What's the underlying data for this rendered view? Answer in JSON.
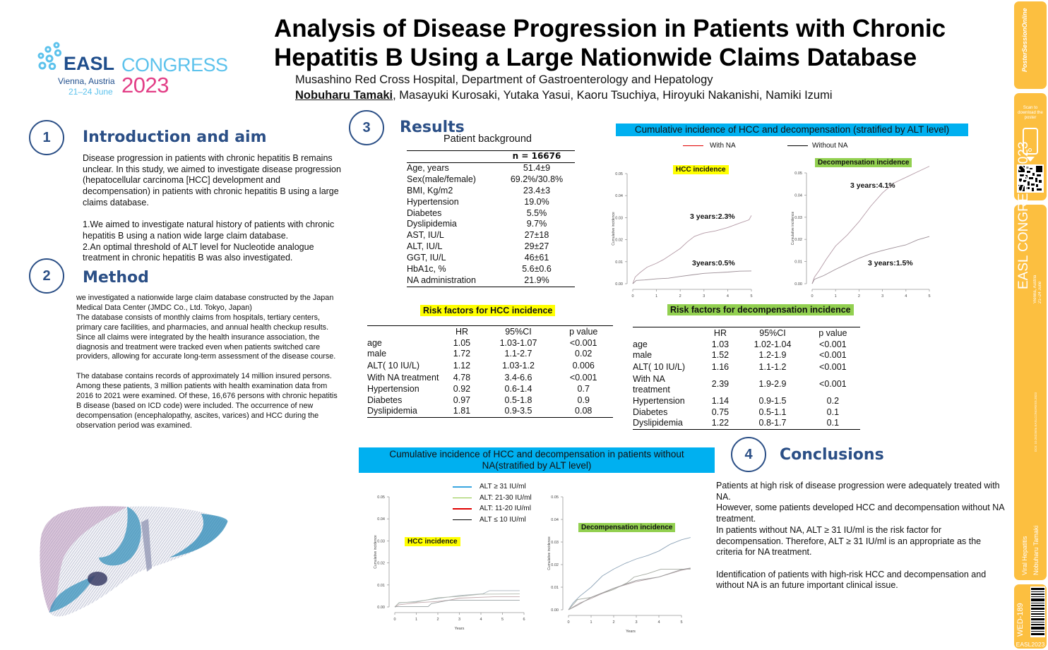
{
  "logo": {
    "brand": "EASL",
    "event": "CONGRESS",
    "city": "Vienna, Austria",
    "dates": "21–24 June",
    "year": "2023",
    "colors": {
      "brand": "#1f4e8c",
      "event": "#5cc2ec",
      "year": "#e23e86"
    }
  },
  "header": {
    "title_line1": "Analysis of Disease Progression in Patients with Chronic",
    "title_line2": "Hepatitis B Using a Large Nationwide Claims Database",
    "affiliation": "Musashino Red Cross Hospital, Department of Gastroenterology and Hepatology",
    "lead_author": "Nobuharu Tamaki",
    "co_authors": ", Masayuki Kurosaki, Yutaka Yasui, Kaoru Tsuchiya, Hiroyuki Nakanishi, Namiki Izumi"
  },
  "sections": {
    "intro": {
      "number": "1",
      "title": "Introduction and aim",
      "p1": "Disease progression in patients with chronic hepatitis B remains unclear. In this study, we aimed to investigate disease progression (hepatocellular carcinoma [HCC] development and decompensation) in patients with chronic hepatitis B using a large claims database.",
      "p2": "1.We aimed to investigate natural history of patients with chronic hepatitis B using a nation wide large claim database.",
      "p3": "2.An optimal threshold of ALT level for Nucleotide analogue treatment in chronic hepatitis B was also investigated."
    },
    "method": {
      "number": "2",
      "title": "Method",
      "p1": "we investigated a nationwide large claim database constructed by the Japan Medical Data Center (JMDC Co., Ltd. Tokyo, Japan)",
      "p2": "The database consists of monthly claims from hospitals, tertiary centers, primary care facilities, and pharmacies, and annual health checkup results.",
      "p3": "Since all claims were integrated by the health insurance association, the diagnosis and treatment were tracked even when patients switched care providers, allowing for accurate long-term assessment of the disease course.",
      "p4": "The database contains records of approximately 14 million insured persons. Among these patients, 3 million patients with health examination data from 2016 to 2021 were examined. Of these, 16,676 persons with chronic hepatitis B disease (based on ICD code) were included. The occurrence of new decompensation (encephalopathy, ascites, varices) and HCC during the observation period was examined."
    },
    "results": {
      "number": "3",
      "title": "Results"
    },
    "conclusions": {
      "number": "4",
      "title": "Conclusions",
      "p1": "Patients at high risk of disease progression were adequately treated with NA.",
      "p2": "However, some patients developed HCC and decompensation without NA treatment.",
      "p3": "In patients without NA, ALT ≥ 31 IU/ml is the risk factor for decompensation. Therefore, ALT ≥ 31 IU/ml is an appropriate as the criteria for NA treatment.",
      "p4": "Identification of patients with high-risk HCC and decompensation and without NA is an future important clinical issue."
    }
  },
  "patient_background": {
    "title": "Patient background",
    "header": "n = 16676",
    "rows": [
      {
        "label": "Age, years",
        "value": "51.4±9"
      },
      {
        "label": "Sex(male/female)",
        "value": "69.2%/30.8%"
      },
      {
        "label": "BMI, Kg/m2",
        "value": "23.4±3"
      },
      {
        "label": "Hypertension",
        "value": "19.0%"
      },
      {
        "label": "Diabetes",
        "value": "5.5%"
      },
      {
        "label": "Dyslipidemia",
        "value": "9.7%"
      },
      {
        "label": "AST, IU/L",
        "value": "27±18"
      },
      {
        "label": "ALT, IU/L",
        "value": "29±27"
      },
      {
        "label": "GGT, IU/L",
        "value": "46±61"
      },
      {
        "label": "HbA1c, %",
        "value": "5.6±0.6"
      },
      {
        "label": "NA administration",
        "value": "21.9%"
      }
    ]
  },
  "risk_hcc": {
    "title": "Risk factors for HCC incidence",
    "columns": [
      "",
      "HR",
      "95%CI",
      "p value"
    ],
    "rows": [
      {
        "factor": "age",
        "hr": "1.05",
        "ci": "1.03-1.07",
        "p": "<0.001"
      },
      {
        "factor": "male",
        "hr": "1.72",
        "ci": "1.1-2.7",
        "p": "0.02"
      },
      {
        "factor": "ALT( 10 IU/L)",
        "hr": "1.12",
        "ci": "1.03-1.2",
        "p": "0.006"
      },
      {
        "factor": "With NA treatment",
        "hr": "4.78",
        "ci": "3.4-6.6",
        "p": "<0.001"
      },
      {
        "factor": "Hypertension",
        "hr": "0.92",
        "ci": "0.6-1.4",
        "p": "0.7"
      },
      {
        "factor": "Diabetes",
        "hr": "0.97",
        "ci": "0.5-1.8",
        "p": "0.9"
      },
      {
        "factor": "Dyslipidemia",
        "hr": "1.81",
        "ci": "0.9-3.5",
        "p": "0.08"
      }
    ]
  },
  "risk_decomp": {
    "title": "Risk factors for decompensation incidence",
    "columns": [
      "",
      "HR",
      "95%CI",
      "p value"
    ],
    "rows": [
      {
        "factor": "age",
        "hr": "1.03",
        "ci": "1.02-1.04",
        "p": "<0.001"
      },
      {
        "factor": "male",
        "hr": "1.52",
        "ci": "1.2-1.9",
        "p": "<0.001"
      },
      {
        "factor": "ALT( 10 IU/L)",
        "hr": "1.16",
        "ci": "1.1-1.2",
        "p": "<0.001"
      },
      {
        "factor": "With NA treatment",
        "hr": "2.39",
        "ci": "1.9-2.9",
        "p": "<0.001"
      },
      {
        "factor": "Hypertension",
        "hr": "1.14",
        "ci": "0.9-1.5",
        "p": "0.2"
      },
      {
        "factor": "Diabetes",
        "hr": "0.75",
        "ci": "0.5-1.1",
        "p": "0.1"
      },
      {
        "factor": "Dyslipidemia",
        "hr": "1.22",
        "ci": "0.8-1.7",
        "p": "0.1"
      }
    ]
  },
  "figure1": {
    "banner": "Cumulative incidence of HCC and decompensation (stratified by ALT level)",
    "legend": [
      {
        "label": "With NA",
        "color": "#e00000"
      },
      {
        "label": "Without NA",
        "color": "#000000"
      }
    ]
  },
  "figure2": {
    "banner_line1": "Cumulative incidence of HCC and decompensation in patients without",
    "banner_line2": "NA(stratified by ALT level)",
    "legend": [
      {
        "label": "ALT ≥ 31 IU/ml",
        "color": "#3aa6e0"
      },
      {
        "label": "ALT: 21-30 IU/ml",
        "color": "#8dc63f"
      },
      {
        "label": "ALT: 11-20 IU/ml",
        "color": "#e00000"
      },
      {
        "label": "ALT ≤ 10 IU/ml",
        "color": "#000000"
      }
    ]
  },
  "chart_data": [
    {
      "type": "line",
      "title": "HCC incidence",
      "xlabel": "",
      "ylabel": "Cumulative incidence",
      "xlim": [
        0,
        5
      ],
      "ylim": [
        0,
        0.05
      ],
      "xticks": [
        "0",
        "1",
        "2",
        "3",
        "4",
        "5"
      ],
      "yticks": [
        "0.00",
        "0.01",
        "0.02",
        "0.03",
        "0.04",
        "0.05"
      ],
      "series": [
        {
          "name": "With NA",
          "x": [
            0,
            0.1,
            0.3,
            0.6,
            1.0,
            1.3,
            1.7,
            2.0,
            2.3,
            2.6,
            3.0,
            3.5,
            4.0,
            4.5,
            4.9,
            5.0
          ],
          "y": [
            0,
            0.003,
            0.005,
            0.0075,
            0.0093,
            0.011,
            0.0138,
            0.016,
            0.019,
            0.0215,
            0.023,
            0.024,
            0.0255,
            0.0275,
            0.029,
            0.031
          ]
        },
        {
          "name": "Without NA",
          "x": [
            0,
            0.15,
            0.5,
            1.0,
            1.5,
            2.0,
            2.5,
            3.0,
            3.5,
            4.0,
            4.5,
            5.0
          ],
          "y": [
            0,
            0.0015,
            0.0017,
            0.0022,
            0.0025,
            0.0033,
            0.004,
            0.0047,
            0.005,
            0.0053,
            0.0057,
            0.0058
          ]
        }
      ],
      "annotations": [
        "3 years:2.3%",
        "3years:0.5%"
      ]
    },
    {
      "type": "line",
      "title": "Decompensation incidence",
      "xlabel": "",
      "ylabel": "Cumulative incidence",
      "xlim": [
        0,
        5
      ],
      "ylim": [
        0,
        0.05
      ],
      "xticks": [
        "0",
        "1",
        "2",
        "3",
        "4",
        "5"
      ],
      "yticks": [
        "0.00",
        "0.01",
        "0.02",
        "0.03",
        "0.04",
        "0.05"
      ],
      "series": [
        {
          "name": "With NA",
          "x": [
            0,
            0.1,
            0.3,
            0.6,
            1.0,
            1.5,
            2.0,
            2.5,
            3.0,
            3.5,
            4.0,
            4.5,
            5.0
          ],
          "y": [
            0,
            0.003,
            0.006,
            0.011,
            0.017,
            0.022,
            0.028,
            0.035,
            0.041,
            0.0455,
            0.048,
            0.0505,
            0.053
          ]
        },
        {
          "name": "Without NA",
          "x": [
            0,
            0.1,
            0.5,
            1.0,
            1.5,
            2.0,
            2.5,
            3.0,
            3.5,
            4.0,
            4.5,
            5.0
          ],
          "y": [
            0,
            0.002,
            0.0037,
            0.0065,
            0.009,
            0.0115,
            0.0135,
            0.015,
            0.0163,
            0.0175,
            0.0198,
            0.0213
          ]
        }
      ],
      "annotations": [
        "3 years:4.1%",
        "3 years:1.5%"
      ]
    },
    {
      "type": "line",
      "title": "HCC incidence",
      "xlabel": "Years",
      "ylabel": "Cumulative incidence",
      "xlim": [
        0,
        6
      ],
      "ylim": [
        0,
        0.05
      ],
      "xticks": [
        "0",
        "1",
        "2",
        "3",
        "4",
        "5",
        "6"
      ],
      "yticks": [
        "0.00",
        "0.01",
        "0.02",
        "0.03",
        "0.04",
        "0.05"
      ],
      "series": [
        {
          "name": "ALT ≥ 31 IU/ml",
          "x": [
            0,
            0.2,
            1.0,
            2.0,
            3.0,
            4.1,
            4.4,
            5.8
          ],
          "y": [
            0,
            0.0018,
            0.0025,
            0.0038,
            0.0052,
            0.006,
            0.0074,
            0.0074
          ]
        },
        {
          "name": "ALT: 21-30 IU/ml",
          "x": [
            0,
            0.2,
            1.0,
            2.0,
            3.0,
            4.0,
            5.8
          ],
          "y": [
            0,
            0.002,
            0.0022,
            0.0042,
            0.0048,
            0.0058,
            0.0059
          ]
        },
        {
          "name": "ALT: 11-20 IU/ml",
          "x": [
            0,
            0.2,
            1.0,
            2.0,
            2.6,
            3.0,
            4.6,
            5.8
          ],
          "y": [
            0,
            0.001,
            0.0019,
            0.0025,
            0.0032,
            0.004,
            0.0046,
            0.0046
          ]
        },
        {
          "name": "ALT ≤ 10 IU/ml",
          "x": [
            0,
            0.1,
            1.55,
            1.7,
            2.5,
            5.8
          ],
          "y": [
            0,
            0.0002,
            0.0002,
            0.0015,
            0.003,
            0.003
          ]
        }
      ]
    },
    {
      "type": "line",
      "title": "Decompensation incidence",
      "xlabel": "Years",
      "ylabel": "Cumulative incidence",
      "xlim": [
        0,
        5.5
      ],
      "ylim": [
        0,
        0.05
      ],
      "xticks": [
        "0",
        "1",
        "2",
        "3",
        "4",
        "5"
      ],
      "yticks": [
        "0.00",
        "0.01",
        "0.02",
        "0.03",
        "0.04",
        "0.05"
      ],
      "series": [
        {
          "name": "ALT ≥ 31 IU/ml",
          "x": [
            0,
            0.2,
            0.5,
            1.0,
            1.5,
            2.0,
            2.5,
            3.0,
            3.5,
            4.0,
            4.5,
            5.0,
            5.4
          ],
          "y": [
            0,
            0.003,
            0.006,
            0.01,
            0.015,
            0.018,
            0.0205,
            0.0225,
            0.024,
            0.026,
            0.029,
            0.031,
            0.032
          ]
        },
        {
          "name": "ALT: 21-30 IU/ml",
          "x": [
            0,
            0.4,
            1.0,
            2.0,
            2.6,
            2.9,
            3.5,
            4.1,
            5.4
          ],
          "y": [
            0,
            0.0045,
            0.0055,
            0.009,
            0.012,
            0.0145,
            0.016,
            0.018,
            0.018
          ]
        },
        {
          "name": "ALT: 11-20 IU/ml",
          "x": [
            0,
            0.5,
            1.0,
            2.0,
            3.0,
            4.0,
            5.0,
            5.4
          ],
          "y": [
            0,
            0.003,
            0.005,
            0.0095,
            0.0125,
            0.0145,
            0.0175,
            0.0183
          ]
        },
        {
          "name": "ALT ≤ 10 IU/ml",
          "x": [
            0,
            0.4,
            1.0,
            2.0,
            3.0,
            4.0,
            5.0,
            5.4
          ],
          "y": [
            0,
            0.002,
            0.0055,
            0.0095,
            0.013,
            0.0145,
            0.0178,
            0.0185
          ]
        }
      ]
    }
  ],
  "sidebar": {
    "poster_online": "PosterSessionOnline",
    "scan_text": "Scan to download the poster",
    "congress": "EASL CONGRESS 2023",
    "congress_city": "Vienna, Austria",
    "congress_dates": "21–24 June",
    "doi": "DOI: 10.26226/m.EASLCONGRESS.2023",
    "topic": "Viral Hepatitis",
    "presenter": "Nobuharu Tamaki",
    "poster_id": "WED-189",
    "footer": "EASL2023"
  }
}
